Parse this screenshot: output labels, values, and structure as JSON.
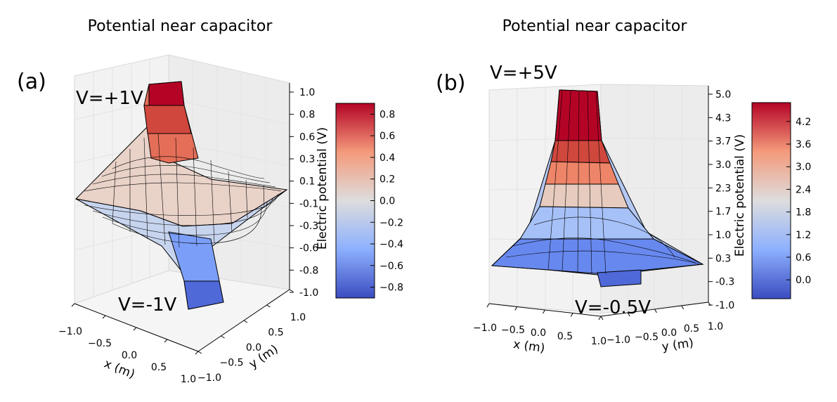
{
  "chart_data": [
    {
      "type": "surface3d",
      "panel_label": "(a)",
      "title": "Potential near capacitor",
      "xlabel": "x (m)",
      "ylabel": "y (m)",
      "zlabel": "Electric potential (V)",
      "x_ticks": [
        "−1.0",
        "−0.5",
        "0.0",
        "0.5",
        "1.0"
      ],
      "y_ticks": [
        "−1.0",
        "−0.5",
        "0.0",
        "0.5",
        "1.0"
      ],
      "z_ticks": [
        "1.0",
        "0.8",
        "0.6",
        "0.3",
        "0.1",
        "-0.1",
        "-0.3",
        "-0.6",
        "-0.8",
        "-1.0"
      ],
      "xlim": [
        -1.0,
        1.0
      ],
      "ylim": [
        -1.0,
        1.0
      ],
      "zlim": [
        -1.0,
        1.0
      ],
      "colorbar": {
        "ticks": [
          "0.8",
          "0.6",
          "0.4",
          "0.2",
          "0.0",
          "−0.2",
          "−0.4",
          "−0.6",
          "−0.8"
        ],
        "range": [
          -0.9,
          0.9
        ],
        "colormap": "coolwarm"
      },
      "annotations": [
        {
          "id": "positive",
          "text": "V=+1V"
        },
        {
          "id": "negative",
          "text": "V=-1V"
        }
      ],
      "plates": [
        {
          "voltage": 1.0
        },
        {
          "voltage": -1.0
        }
      ]
    },
    {
      "type": "surface3d",
      "panel_label": "(b)",
      "title": "Potential near capacitor",
      "xlabel": "x (m)",
      "ylabel": "y (m)",
      "zlabel": "Electric potential (V)",
      "x_ticks": [
        "−1.0",
        "−0.5",
        "0.0",
        "0.5",
        "1.0"
      ],
      "y_ticks": [
        "−1.0",
        "−0.5",
        "0.0",
        "0.5",
        "1.0"
      ],
      "z_ticks": [
        "5.0",
        "4.3",
        "3.7",
        "3.0",
        "2.3",
        "1.7",
        "1.0",
        "0.3",
        "-0.3",
        "-1.0"
      ],
      "xlim": [
        -1.0,
        1.0
      ],
      "ylim": [
        -1.0,
        1.0
      ],
      "zlim": [
        -1.0,
        5.0
      ],
      "colorbar": {
        "ticks": [
          "4.2",
          "3.6",
          "3.0",
          "2.4",
          "1.8",
          "1.2",
          "0.6",
          "0.0"
        ],
        "range": [
          -0.5,
          4.7
        ],
        "colormap": "coolwarm"
      },
      "annotations": [
        {
          "id": "positive",
          "text": "V=+5V"
        },
        {
          "id": "negative",
          "text": "V=-0.5V"
        }
      ],
      "plates": [
        {
          "voltage": 5.0
        },
        {
          "voltage": -0.5
        }
      ]
    }
  ],
  "colors": {
    "cool": "#3b4cc0",
    "mid": "#dddddd",
    "warm": "#b40426",
    "pane": "#f2f2f2",
    "pane_dark": "#eaeaea",
    "edge": "#000000"
  }
}
